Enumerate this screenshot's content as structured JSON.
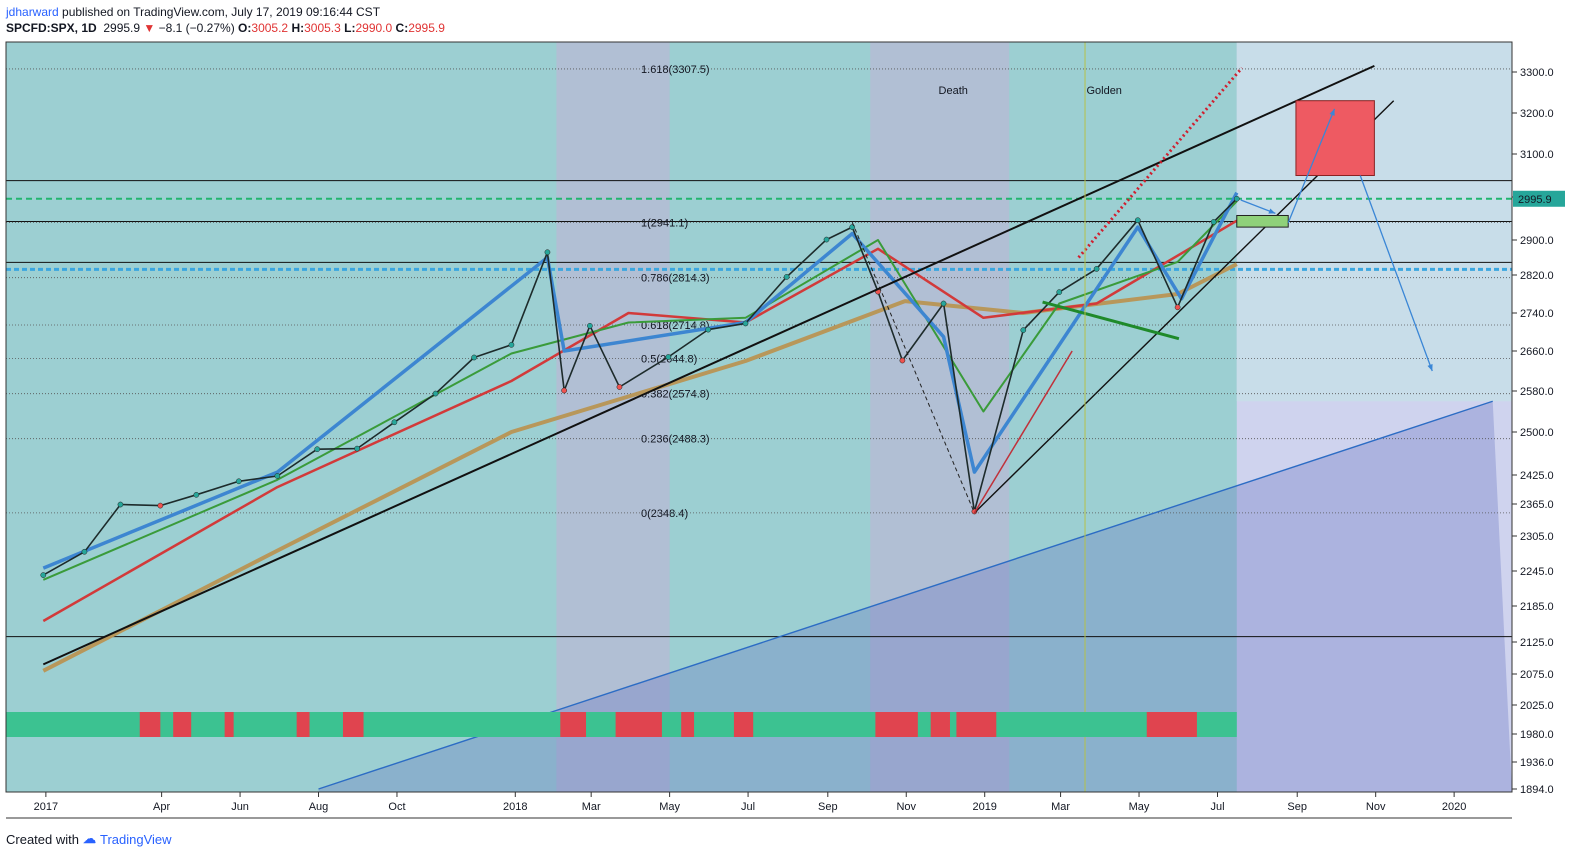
{
  "header": {
    "author": "jdharward",
    "published": " published on TradingView.com, July 17, 2019 09:16:44 CST",
    "symbol": "SPCFD:SPX, 1D",
    "price": "2995.9",
    "arrow": "▼",
    "change": "−8.1 (−0.27%)",
    "o_label": "O:",
    "o_val": "3005.2",
    "h_label": "H:",
    "h_val": "3005.3",
    "l_label": "L:",
    "l_val": "2990.0",
    "c_label": "C:",
    "c_val": "2995.9"
  },
  "footer": {
    "created_with": "Created with",
    "brand": "TradingView"
  },
  "colors": {
    "up": "#26a69a",
    "down": "#ef5350",
    "blue_ma": "#3d86d1",
    "green_ma": "#3a9b3a",
    "red_ma": "#d23a3a",
    "gold_ma": "#b8975a",
    "price_label_bg": "#26a69a",
    "dashed_green": "#21b56f",
    "dashed_blue": "#3aa6e0",
    "red_box": "#ee5a62"
  },
  "chart_data": {
    "type": "candlestick",
    "title": "",
    "x_ticks": [
      "2017",
      "Apr",
      "Jun",
      "Aug",
      "Oct",
      "2018",
      "Mar",
      "May",
      "Jul",
      "Sep",
      "Nov",
      "2019",
      "Mar",
      "May",
      "Jul",
      "Sep",
      "Nov",
      "2020"
    ],
    "y_ticks": [
      1894.0,
      1936.0,
      1980.0,
      2025.0,
      2075.0,
      2125.0,
      2185.0,
      2245.0,
      2305.0,
      2365.0,
      2425.0,
      2500.0,
      2580.0,
      2660.0,
      2740.0,
      2820.0,
      2900.0,
      3000.0,
      3100.0,
      3200.0,
      3300.0
    ],
    "y_range": [
      1894,
      3350
    ],
    "last_price": 2995.9,
    "last_price_label": "2995.9",
    "fib_levels": [
      {
        "label": "1.618(3307.5)",
        "value": 3307.5
      },
      {
        "label": "1(2941.1)",
        "value": 2941.1
      },
      {
        "label": "0.786(2814.3)",
        "value": 2814.3
      },
      {
        "label": "0.618(2714.8)",
        "value": 2714.8
      },
      {
        "label": "0.5(2644.8)",
        "value": 2644.8
      },
      {
        "label": "0.382(2574.8)",
        "value": 2574.8
      },
      {
        "label": "0.236(2488.3)",
        "value": 2488.3
      },
      {
        "label": "0(2348.4)",
        "value": 2348.4
      }
    ],
    "annotations": [
      {
        "text": "Death",
        "date": "2018-12-07"
      },
      {
        "text": "Golden",
        "date": "2019-04-01"
      }
    ],
    "horizontal_lines": [
      3038,
      2943,
      2849,
      2134
    ],
    "price_path": [
      [
        "2016-12-30",
        2238
      ],
      [
        "2017-01-31",
        2278
      ],
      [
        "2017-02-28",
        2364
      ],
      [
        "2017-03-31",
        2362
      ],
      [
        "2017-04-28",
        2384
      ],
      [
        "2017-05-31",
        2412
      ],
      [
        "2017-06-30",
        2423
      ],
      [
        "2017-07-31",
        2470
      ],
      [
        "2017-08-31",
        2471
      ],
      [
        "2017-09-29",
        2519
      ],
      [
        "2017-10-31",
        2575
      ],
      [
        "2017-11-30",
        2647
      ],
      [
        "2017-12-29",
        2673
      ],
      [
        "2018-01-26",
        2872
      ],
      [
        "2018-02-08",
        2581
      ],
      [
        "2018-02-28",
        2713
      ],
      [
        "2018-03-23",
        2588
      ],
      [
        "2018-04-30",
        2648
      ],
      [
        "2018-05-31",
        2705
      ],
      [
        "2018-06-29",
        2718
      ],
      [
        "2018-07-31",
        2816
      ],
      [
        "2018-08-31",
        2901
      ],
      [
        "2018-09-20",
        2930
      ],
      [
        "2018-10-10",
        2785
      ],
      [
        "2018-10-29",
        2641
      ],
      [
        "2018-11-30",
        2760
      ],
      [
        "2018-12-24",
        2351
      ],
      [
        "2019-01-31",
        2704
      ],
      [
        "2019-02-28",
        2784
      ],
      [
        "2019-03-29",
        2834
      ],
      [
        "2019-04-30",
        2946
      ],
      [
        "2019-05-31",
        2752
      ],
      [
        "2019-06-28",
        2942
      ],
      [
        "2019-07-16",
        2995.9
      ]
    ],
    "moving_averages": [
      {
        "period": 200,
        "color_key": "gold_ma",
        "points": [
          [
            "2016-12-30",
            2080
          ],
          [
            "2017-06-30",
            2280
          ],
          [
            "2017-12-29",
            2500
          ],
          [
            "2018-06-29",
            2640
          ],
          [
            "2018-10-31",
            2765
          ],
          [
            "2019-01-31",
            2740
          ],
          [
            "2019-05-31",
            2780
          ],
          [
            "2019-07-16",
            2845
          ]
        ]
      },
      {
        "period": 50,
        "color_key": "red_ma",
        "points": [
          [
            "2016-12-30",
            2160
          ],
          [
            "2017-06-30",
            2400
          ],
          [
            "2017-12-29",
            2600
          ],
          [
            "2018-03-30",
            2740
          ],
          [
            "2018-06-29",
            2720
          ],
          [
            "2018-10-10",
            2880
          ],
          [
            "2018-12-31",
            2730
          ],
          [
            "2019-03-29",
            2760
          ],
          [
            "2019-07-16",
            2945
          ]
        ]
      },
      {
        "period": 20,
        "color_key": "green_ma",
        "points": [
          [
            "2016-12-30",
            2230
          ],
          [
            "2017-06-30",
            2415
          ],
          [
            "2017-12-29",
            2655
          ],
          [
            "2018-03-30",
            2720
          ],
          [
            "2018-06-29",
            2730
          ],
          [
            "2018-10-10",
            2900
          ],
          [
            "2018-12-31",
            2540
          ],
          [
            "2019-02-28",
            2760
          ],
          [
            "2019-05-31",
            2850
          ],
          [
            "2019-07-16",
            2990
          ]
        ]
      },
      {
        "period": 8,
        "color_key": "blue_ma",
        "points": [
          [
            "2016-12-30",
            2250
          ],
          [
            "2017-06-30",
            2430
          ],
          [
            "2018-01-26",
            2860
          ],
          [
            "2018-02-08",
            2660
          ],
          [
            "2018-06-29",
            2720
          ],
          [
            "2018-09-20",
            2915
          ],
          [
            "2018-11-30",
            2690
          ],
          [
            "2018-12-24",
            2430
          ],
          [
            "2019-04-30",
            2930
          ],
          [
            "2019-06-03",
            2770
          ],
          [
            "2019-07-16",
            3010
          ]
        ]
      }
    ],
    "trend_lines": [
      {
        "from": [
          "2016-12-30",
          2090
        ],
        "to": [
          "2019-10-31",
          3315
        ]
      },
      {
        "from": [
          "2018-12-24",
          2348.4
        ],
        "to": [
          "2019-11-15",
          3230
        ]
      },
      {
        "from": [
          "2017-08-01",
          1894
        ],
        "to": [
          "2020-01-31",
          2560
        ]
      }
    ],
    "projection_box": {
      "from": [
        "2019-08-31",
        3230
      ],
      "to": [
        "2019-10-31",
        3050
      ],
      "label": ""
    },
    "signal_bar": {
      "label": "",
      "red_ranges": [
        [
          "2017-03-15",
          "2017-03-31"
        ],
        [
          "2017-04-10",
          "2017-04-24"
        ],
        [
          "2017-05-20",
          "2017-05-27"
        ],
        [
          "2017-07-15",
          "2017-07-25"
        ],
        [
          "2017-08-20",
          "2017-09-05"
        ],
        [
          "2018-02-05",
          "2018-02-25"
        ],
        [
          "2018-03-20",
          "2018-04-25"
        ],
        [
          "2018-05-10",
          "2018-05-20"
        ],
        [
          "2018-06-20",
          "2018-07-05"
        ],
        [
          "2018-10-08",
          "2018-11-10"
        ],
        [
          "2018-11-20",
          "2018-12-05"
        ],
        [
          "2018-12-10",
          "2019-01-10"
        ],
        [
          "2019-05-07",
          "2019-06-15"
        ]
      ]
    }
  }
}
